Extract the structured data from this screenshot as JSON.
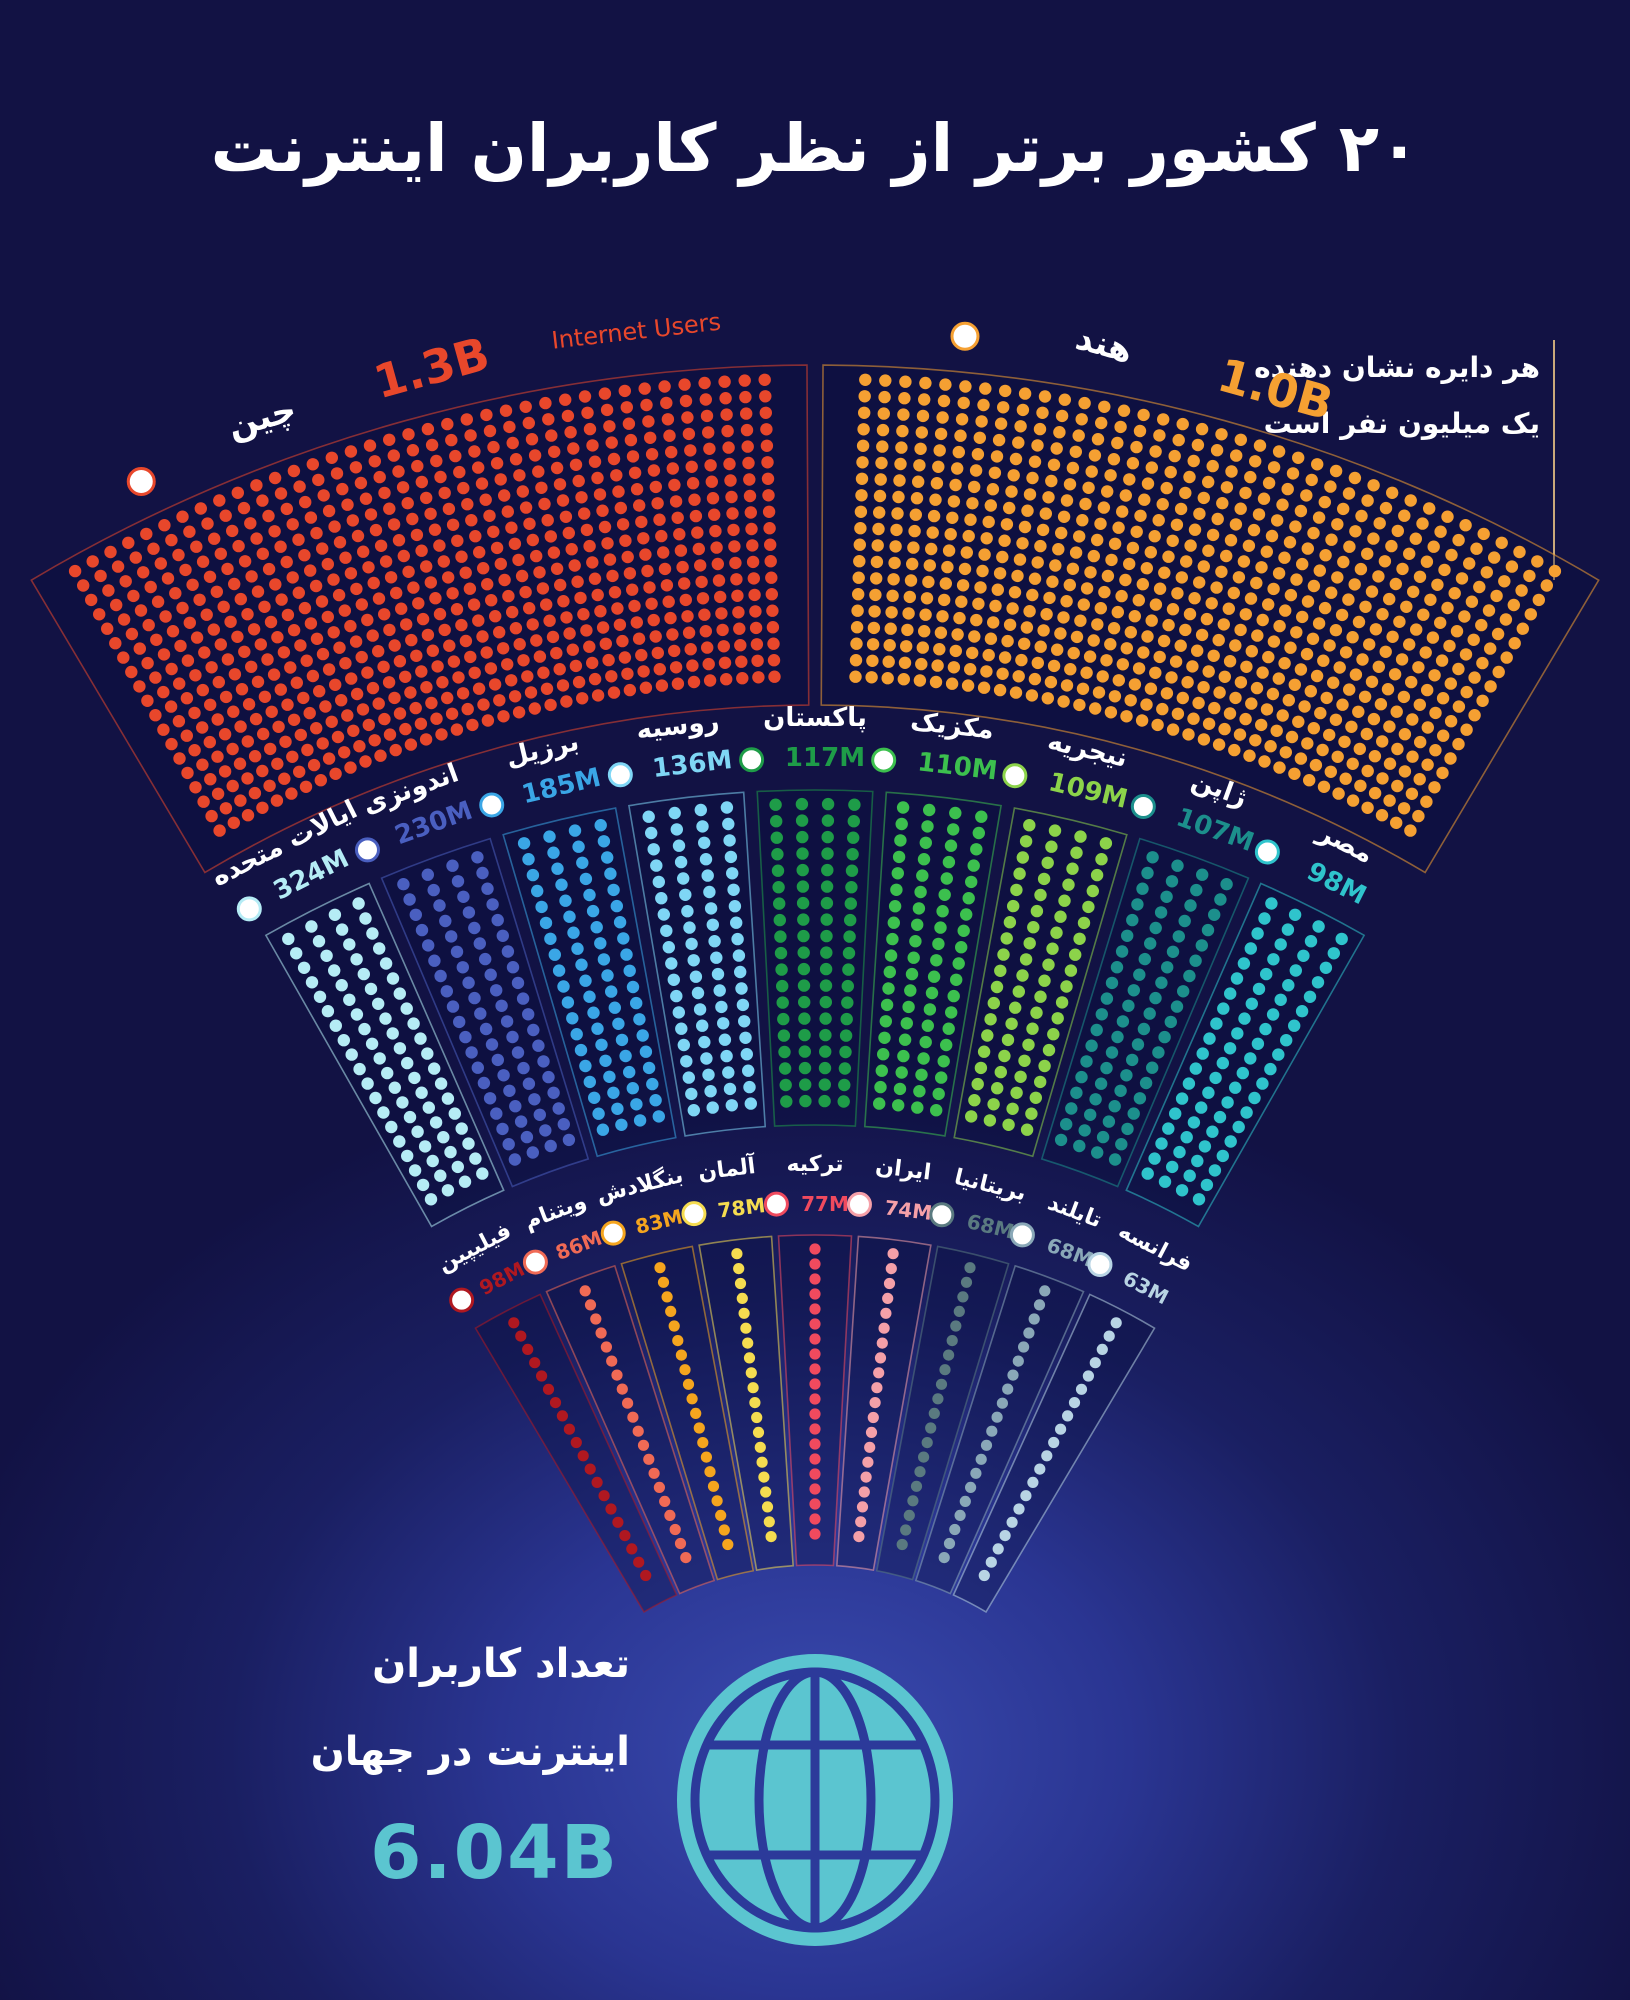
{
  "header": {
    "title": "۲۰ کشور برتر از نظر کاربران اینترنت"
  },
  "legend": {
    "line1": "هر دایره نشان دهنده",
    "line2": "یک میلیون نفر است"
  },
  "china_subtitle": "Internet Users",
  "world": {
    "line1": "تعداد کاربران",
    "line2": "اینترنت در جهان",
    "value": "6.04B",
    "icon": "globe-icon"
  },
  "colors": {
    "background_top": "#121244",
    "background_glow": "#3a4bb0",
    "globe": "#5bc5d0"
  },
  "chart_data": {
    "type": "dot-matrix-fan",
    "title": "۲۰ کشور برتر از نظر کاربران اینترنت",
    "unit": "1 dot = 1 million internet users",
    "total_world": "6.04B",
    "rows": [
      {
        "row": "top",
        "countries": [
          {
            "name_fa": "چین",
            "name_en": "China",
            "label": "1.3B",
            "value_m": 1300,
            "color": "#e8472b",
            "flag": "china-flag-icon"
          },
          {
            "name_fa": "هند",
            "name_en": "India",
            "label": "1.0B",
            "value_m": 1000,
            "color": "#f5a032",
            "flag": "india-flag-icon"
          }
        ]
      },
      {
        "row": "middle",
        "countries": [
          {
            "name_fa": "ایالات متحده",
            "name_en": "U.S.",
            "label": "324M",
            "prefix": "U.S.",
            "value_m": 324,
            "color": "#b5ecf5",
            "flag": "usa-flag-icon"
          },
          {
            "name_fa": "اندونزی",
            "name_en": "Indonesia",
            "label": "230M",
            "value_m": 230,
            "color": "#4a5fc0",
            "flag": "indonesia-flag-icon"
          },
          {
            "name_fa": "برزیل",
            "name_en": "Brazil",
            "label": "185M",
            "value_m": 185,
            "color": "#3aa6e6",
            "flag": "brazil-flag-icon"
          },
          {
            "name_fa": "روسیه",
            "name_en": "Russia",
            "label": "136M",
            "value_m": 136,
            "color": "#7fd6f5",
            "flag": "russia-flag-icon"
          },
          {
            "name_fa": "پاکستان",
            "name_en": "Pakistan",
            "label": "117M",
            "value_m": 117,
            "color": "#1e9c48",
            "flag": "pakistan-flag-icon"
          },
          {
            "name_fa": "مکزیک",
            "name_en": "Mexico",
            "label": "110M",
            "value_m": 110,
            "color": "#3cc04e",
            "flag": "mexico-flag-icon"
          },
          {
            "name_fa": "نیجریه",
            "name_en": "Nigeria",
            "label": "109M",
            "value_m": 109,
            "color": "#8cd34a",
            "flag": "nigeria-flag-icon"
          },
          {
            "name_fa": "ژاپن",
            "name_en": "Japan",
            "label": "107M",
            "value_m": 107,
            "color": "#1c8f8c",
            "flag": "japan-flag-icon"
          },
          {
            "name_fa": "مصر",
            "name_en": "Egypt",
            "label": "98M",
            "value_m": 98,
            "color": "#2fc4cc",
            "flag": "egypt-flag-icon"
          }
        ]
      },
      {
        "row": "bottom",
        "countries": [
          {
            "name_fa": "فیلیپین",
            "name_en": "Philippines",
            "label": "98M",
            "value_m": 98,
            "color": "#b01820",
            "flag": "philippines-flag-icon"
          },
          {
            "name_fa": "ویتنام",
            "name_en": "Vietnam",
            "label": "86M",
            "value_m": 86,
            "color": "#f06a55",
            "flag": "vietnam-flag-icon"
          },
          {
            "name_fa": "بنگلادش",
            "name_en": "Bangladesh",
            "label": "83M",
            "value_m": 83,
            "color": "#f5a51e",
            "flag": "bangladesh-flag-icon"
          },
          {
            "name_fa": "آلمان",
            "name_en": "Germany",
            "label": "78M",
            "value_m": 78,
            "color": "#f5dc50",
            "flag": "germany-flag-icon"
          },
          {
            "name_fa": "ترکیه",
            "name_en": "Turkey",
            "label": "77M",
            "value_m": 77,
            "color": "#f04a5e",
            "flag": "turkey-flag-icon"
          },
          {
            "name_fa": "ایران",
            "name_en": "Iran",
            "label": "74M",
            "value_m": 74,
            "color": "#f5a0a8",
            "flag": "iran-flag-icon"
          },
          {
            "name_fa": "بریتانیا",
            "name_en": "United Kingdom",
            "label": "68M",
            "value_m": 68,
            "color": "#5a7a80",
            "flag": "uk-flag-icon"
          },
          {
            "name_fa": "تایلند",
            "name_en": "Thailand",
            "label": "68M",
            "value_m": 68,
            "color": "#8aa8b8",
            "flag": "thailand-flag-icon"
          },
          {
            "name_fa": "فرانسه",
            "name_en": "France",
            "label": "63M",
            "value_m": 63,
            "color": "#b8d4e4",
            "flag": "france-flag-icon"
          }
        ]
      }
    ]
  }
}
